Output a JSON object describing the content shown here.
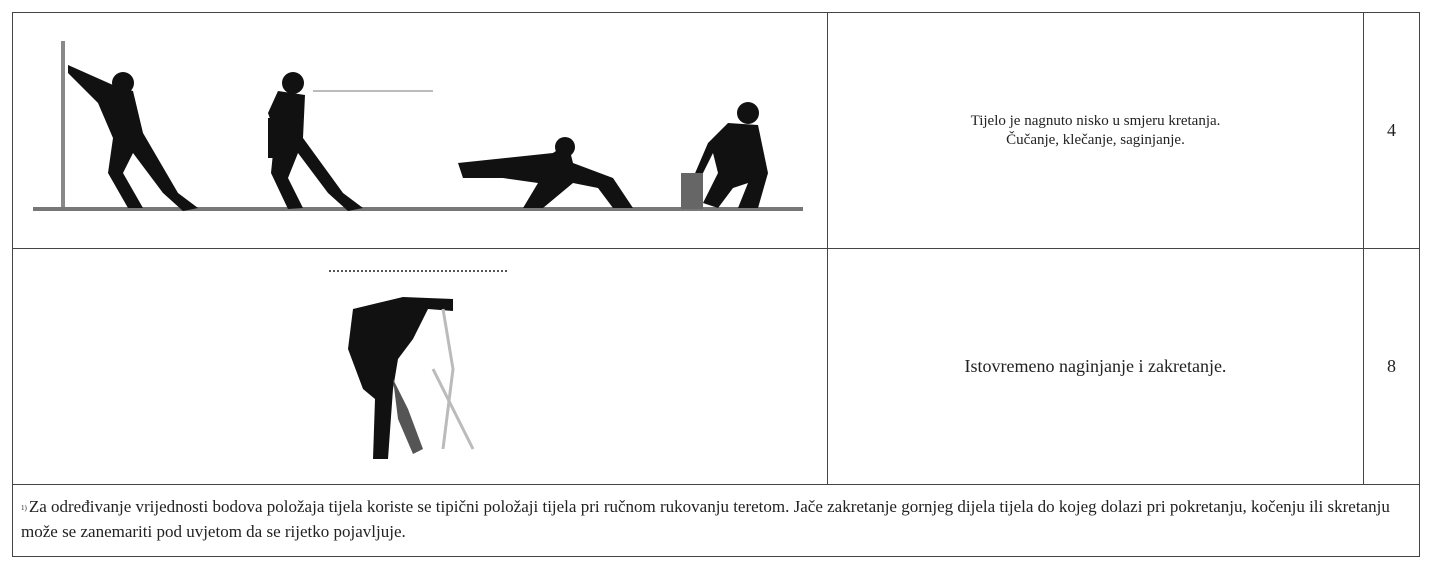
{
  "table": {
    "rows": [
      {
        "description": [
          "Tijelo je nagnuto nisko u smjeru kretanja.",
          "Čučanje, klečanje, saginjanje."
        ],
        "points": 4
      },
      {
        "description": [
          "Istovremeno naginjanje i zakretanje."
        ],
        "points": 8
      }
    ],
    "footnote": {
      "marker": "1)",
      "text": "Za određivanje vrijednosti bodova položaja tijela koriste se tipični položaji tijela pri ručnom rukovanju teretom. Jače zakretanje gornjeg dijela tijela do kojeg dolazi pri pokretanju, kočenju ili skretanju može se zanemariti pod uvjetom da se rijetko pojavljuje."
    }
  }
}
